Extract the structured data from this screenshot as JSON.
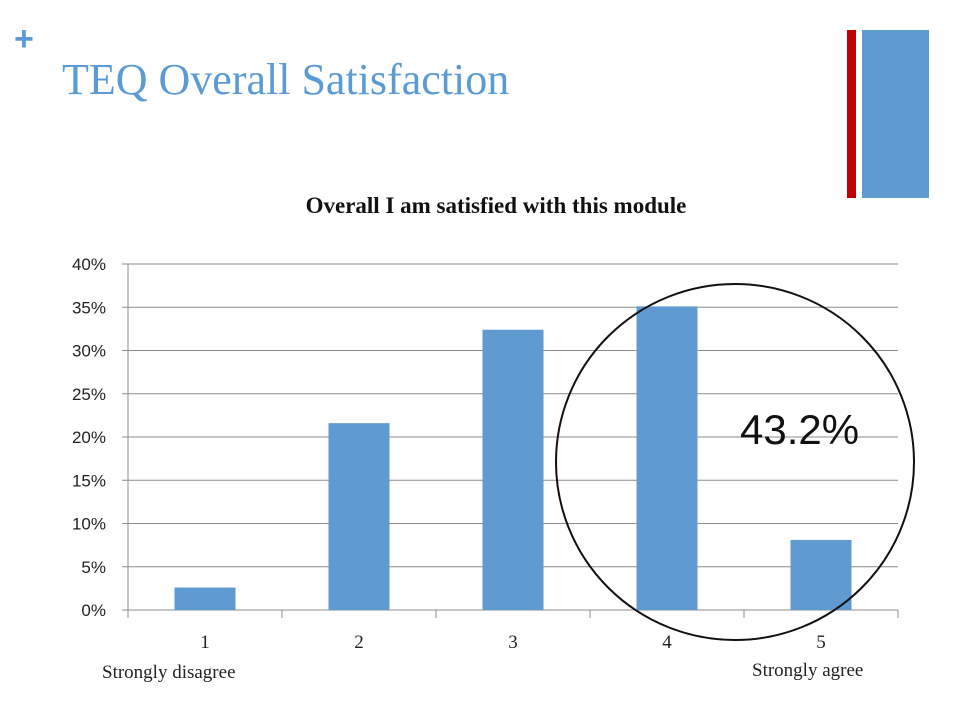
{
  "slide": {
    "plus_symbol": "+",
    "title": "TEQ Overall Satisfaction"
  },
  "colors": {
    "title": "#5b9bd5",
    "bar": "#5f9bd0",
    "accent_red": "#c00000",
    "accent_blue": "#5f9bd0",
    "grid": "#8c8c8c"
  },
  "labels": {
    "low_anchor": "Strongly disagree",
    "high_anchor": "Strongly agree",
    "callout": "43.2%"
  },
  "chart_data": {
    "type": "bar",
    "title": "Overall I am satisfied with this module",
    "categories": [
      "1",
      "2",
      "3",
      "4",
      "5"
    ],
    "values": [
      2.6,
      21.6,
      32.4,
      35.1,
      8.1
    ],
    "ylim": [
      0,
      40
    ],
    "yticks": [
      "0%",
      "5%",
      "10%",
      "15%",
      "20%",
      "25%",
      "30%",
      "35%",
      "40%"
    ],
    "ytick_values": [
      0,
      5,
      10,
      15,
      20,
      25,
      30,
      35,
      40
    ],
    "grid": true,
    "legend": "none",
    "annotation": {
      "text": "43.2%",
      "shape": "circle",
      "around_categories": [
        "4",
        "5"
      ]
    }
  }
}
